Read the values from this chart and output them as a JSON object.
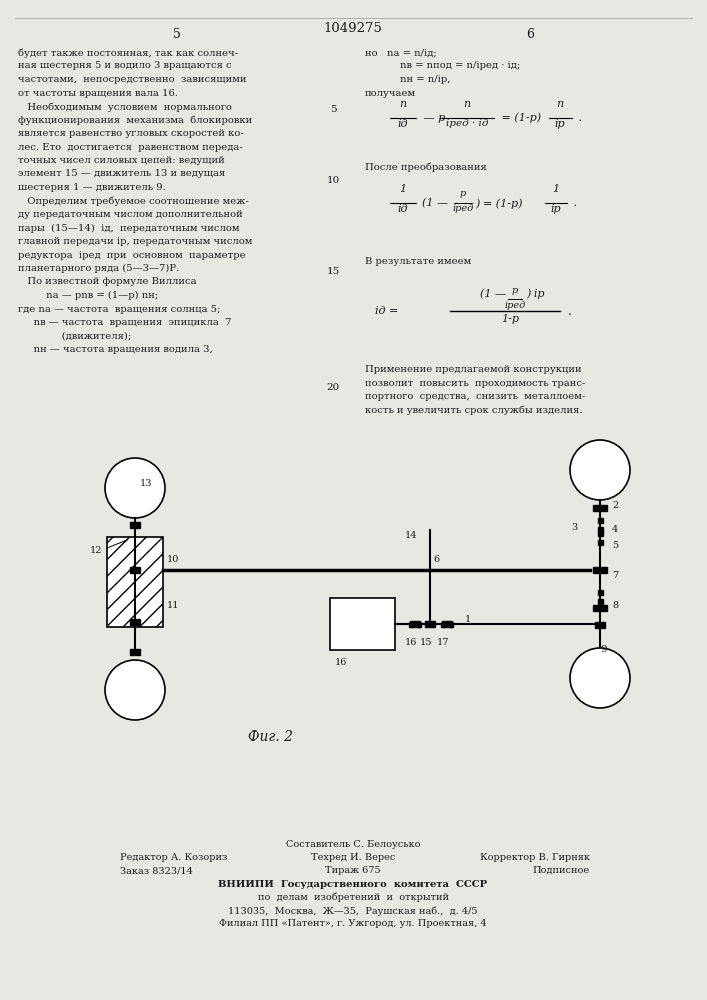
{
  "bg_color": "#e8e8e3",
  "page_color": "#f0ede6",
  "text_color": "#1a1a1a",
  "header_patent_num": "1049275",
  "header_left_num": "5",
  "header_right_num": "6",
  "left_col_text": [
    "будет также постоянная, так как солнеч-",
    "ная шестерня 5 и водило 3 вращаются с",
    "частотами,  непосредственно  зависящими",
    "от частоты вращения вала 16.",
    "   Необходимым  условием  нормального",
    "функционирования  механизма  блокировки",
    "является равенство угловых скоростей ко-",
    "лес. Ето  достигается  равенством переда-",
    "точных чисел силовых цепей: ведущий",
    "элемент 15 — движитель 13 и ведущая",
    "шестерня 1 — движитель 9.",
    "   Определим требуемое соотношение меж-",
    "ду передаточным числом дополнительной",
    "пары  (15—14)  iд,  передаточным числом",
    "главной передачи iр, передаточным числом",
    "редуктора  iред  при  основном  параметре",
    "планетарного ряда (5—3—7)Р.",
    "   По известной формуле Виллиса",
    "         nа — рnв = (1—р) nн;",
    "где nа — частота  вращения солнца 5;",
    "     nв — частота  вращения  эпицикла  7",
    "              (движителя);",
    "     nн — частота вращения водила 3,"
  ],
  "fig_label": "Фиг. 2"
}
